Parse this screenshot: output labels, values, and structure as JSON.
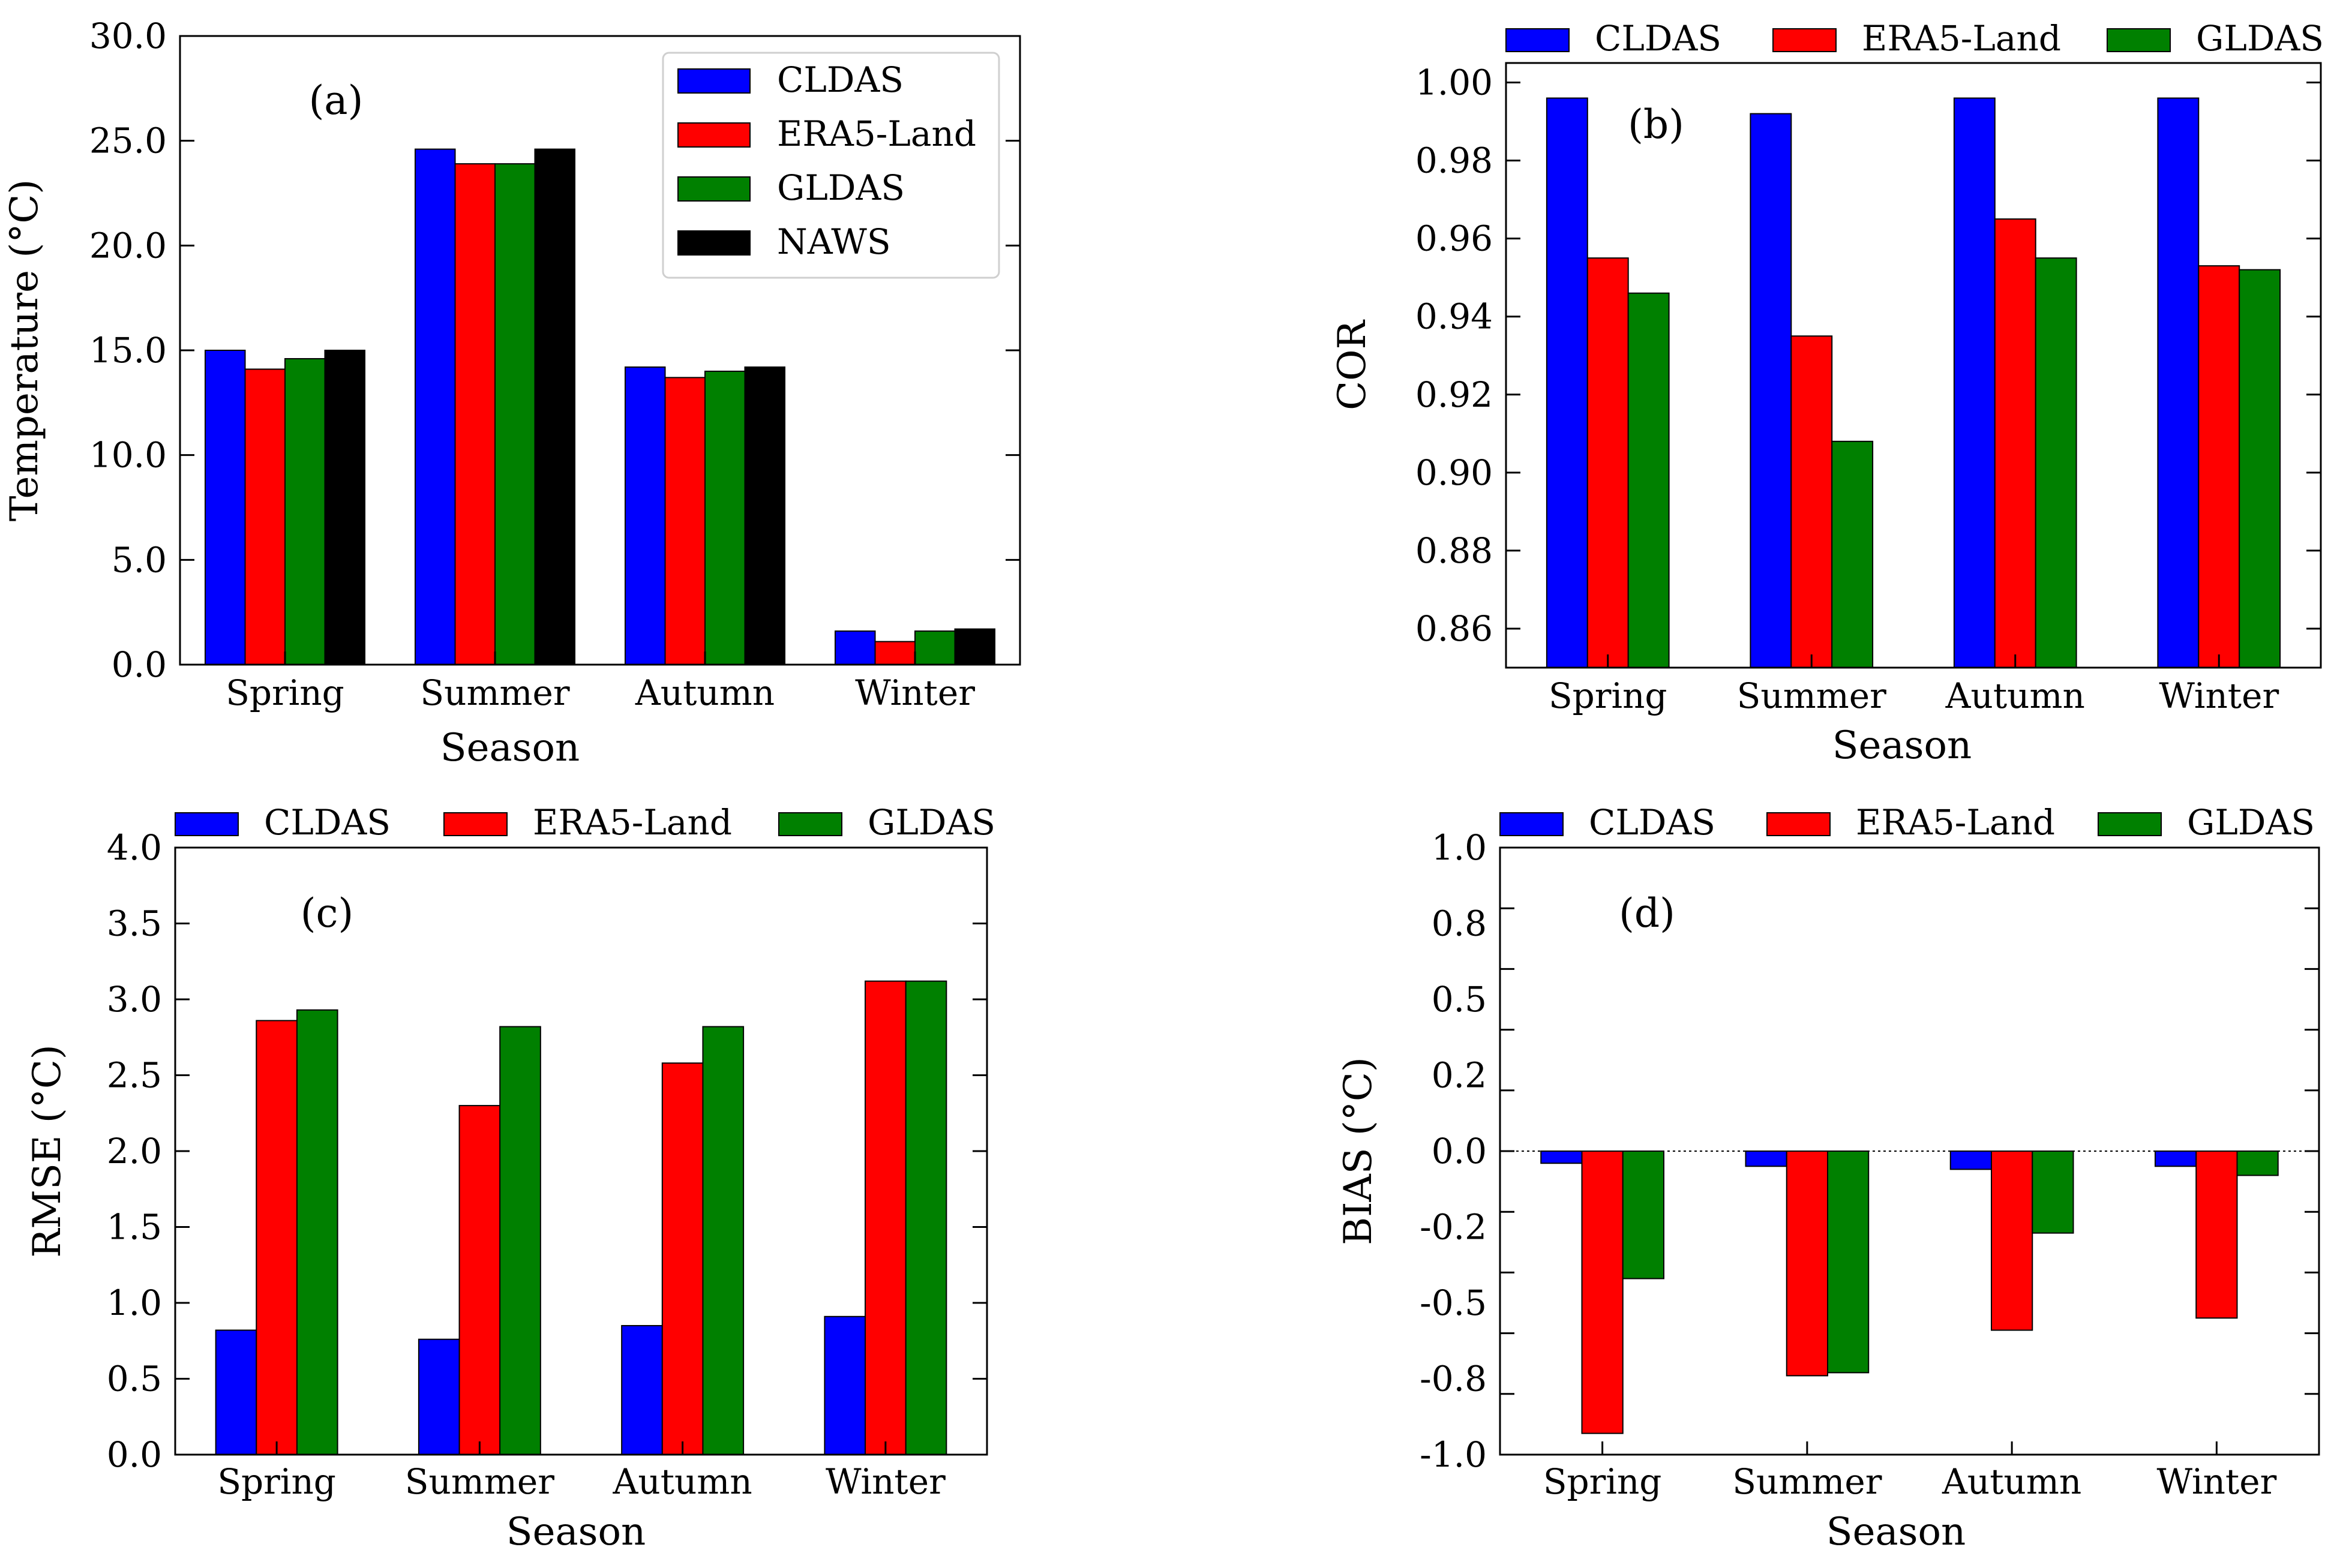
{
  "chart_data": [
    {
      "id": "a",
      "type": "bar",
      "panel_label": "(a)",
      "xlabel": "Season",
      "ylabel": "Temperature (°C)",
      "categories": [
        "Spring",
        "Summer",
        "Autumn",
        "Winter"
      ],
      "ylim": [
        0,
        30
      ],
      "yticks": [
        0,
        5,
        10,
        15,
        20,
        25,
        30
      ],
      "ytick_labels": [
        "0.0",
        "5.0",
        "10.0",
        "15.0",
        "20.0",
        "25.0",
        "30.0"
      ],
      "legend_position": "top-right-boxed",
      "series": [
        {
          "name": "CLDAS",
          "color": "#0000ff",
          "values": [
            15.0,
            24.6,
            14.2,
            1.6
          ]
        },
        {
          "name": "ERA5-Land",
          "color": "#ff0000",
          "values": [
            14.1,
            23.9,
            13.7,
            1.1
          ]
        },
        {
          "name": "GLDAS",
          "color": "#008000",
          "values": [
            14.6,
            23.9,
            14.0,
            1.6
          ]
        },
        {
          "name": "NAWS",
          "color": "#000000",
          "values": [
            15.0,
            24.6,
            14.2,
            1.7
          ]
        }
      ]
    },
    {
      "id": "b",
      "type": "bar",
      "panel_label": "(b)",
      "xlabel": "Season",
      "ylabel": "COR",
      "categories": [
        "Spring",
        "Summer",
        "Autumn",
        "Winter"
      ],
      "ylim": [
        0.85,
        1.005
      ],
      "yticks": [
        0.86,
        0.88,
        0.9,
        0.92,
        0.94,
        0.96,
        0.98,
        1.0
      ],
      "ytick_labels": [
        "0.86",
        "0.88",
        "0.90",
        "0.92",
        "0.94",
        "0.96",
        "0.98",
        "1.00"
      ],
      "legend_position": "top-outside",
      "series": [
        {
          "name": "CLDAS",
          "color": "#0000ff",
          "values": [
            0.996,
            0.992,
            0.996,
            0.996
          ]
        },
        {
          "name": "ERA5-Land",
          "color": "#ff0000",
          "values": [
            0.955,
            0.935,
            0.965,
            0.953
          ]
        },
        {
          "name": "GLDAS",
          "color": "#008000",
          "values": [
            0.946,
            0.908,
            0.955,
            0.952
          ]
        }
      ]
    },
    {
      "id": "c",
      "type": "bar",
      "panel_label": "(c)",
      "xlabel": "Season",
      "ylabel": "RMSE (°C)",
      "categories": [
        "Spring",
        "Summer",
        "Autumn",
        "Winter"
      ],
      "ylim": [
        0,
        4
      ],
      "yticks": [
        0,
        0.5,
        1,
        1.5,
        2,
        2.5,
        3,
        3.5,
        4
      ],
      "ytick_labels": [
        "0.0",
        "0.5",
        "1.0",
        "1.5",
        "2.0",
        "2.5",
        "3.0",
        "3.5",
        "4.0"
      ],
      "legend_position": "top-outside",
      "series": [
        {
          "name": "CLDAS",
          "color": "#0000ff",
          "values": [
            0.82,
            0.76,
            0.85,
            0.91
          ]
        },
        {
          "name": "ERA5-Land",
          "color": "#ff0000",
          "values": [
            2.86,
            2.3,
            2.58,
            3.12
          ]
        },
        {
          "name": "GLDAS",
          "color": "#008000",
          "values": [
            2.93,
            2.82,
            2.82,
            3.12
          ]
        }
      ]
    },
    {
      "id": "d",
      "type": "bar",
      "panel_label": "(d)",
      "xlabel": "Season",
      "ylabel": "BIAS (°C)",
      "categories": [
        "Spring",
        "Summer",
        "Autumn",
        "Winter"
      ],
      "ylim": [
        -1.0,
        1.0
      ],
      "yticks": [
        -1.0,
        -0.8,
        -0.6,
        -0.4,
        -0.2,
        0.0,
        0.2,
        0.4,
        0.6,
        0.8,
        1.0
      ],
      "ytick_labels": [
        "-1.0",
        "-0.8",
        "-0.5",
        "-0.2",
        "0.0",
        "0.2",
        "0.5",
        "0.8",
        "1.0"
      ],
      "ytick_label_values": [
        -1.0,
        -0.75,
        -0.5,
        -0.25,
        0.0,
        0.25,
        0.5,
        0.75,
        1.0
      ],
      "zero_line": true,
      "legend_position": "top-outside",
      "series": [
        {
          "name": "CLDAS",
          "color": "#0000ff",
          "values": [
            -0.04,
            -0.05,
            -0.06,
            -0.05
          ]
        },
        {
          "name": "ERA5-Land",
          "color": "#ff0000",
          "values": [
            -0.93,
            -0.74,
            -0.59,
            -0.55
          ]
        },
        {
          "name": "GLDAS",
          "color": "#008000",
          "values": [
            -0.42,
            -0.73,
            -0.27,
            -0.08
          ]
        }
      ]
    }
  ]
}
